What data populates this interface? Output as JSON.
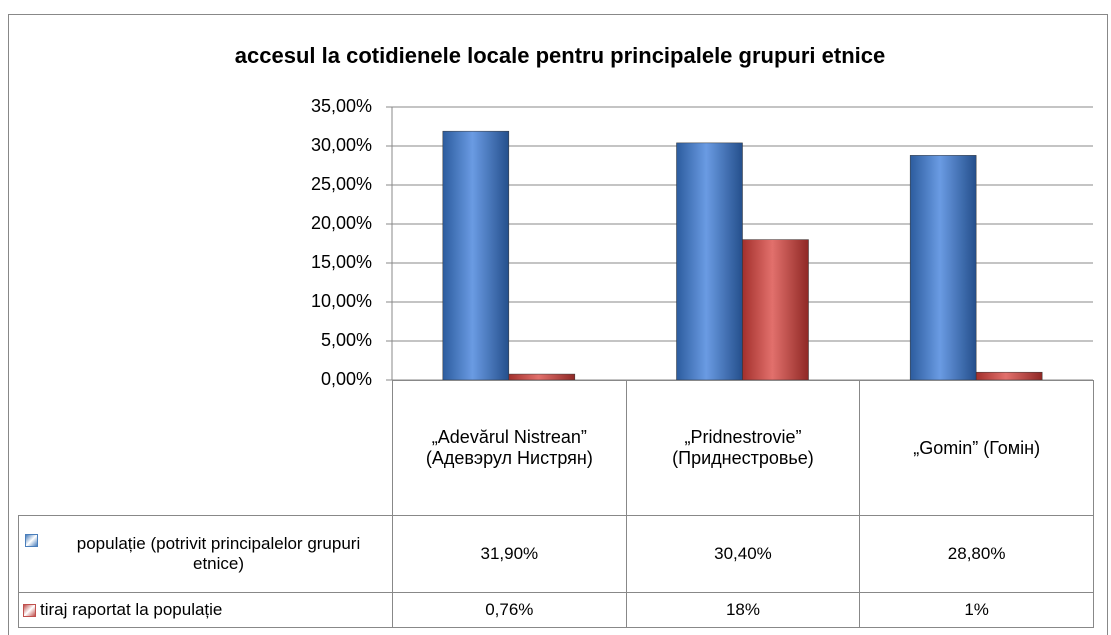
{
  "chart_data": {
    "type": "bar",
    "title": "accesul la cotidienele locale pentru principalele grupuri etnice",
    "categories": [
      "„Adevărul Nistrean” (Адевэрул Нистрян)",
      "„Pridnestrovie” (Приднестровье)",
      "„Gomin” (Гомін)"
    ],
    "series": [
      {
        "name": "populație (potrivit principalelor grupuri etnice)",
        "color": "#4a7ebb",
        "values": [
          31.9,
          30.4,
          28.8
        ],
        "value_labels": [
          "31,90%",
          "30,40%",
          "28,80%"
        ]
      },
      {
        "name": "tiraj raportat la populație",
        "color": "#c0504d",
        "values": [
          0.76,
          18,
          1
        ],
        "value_labels": [
          "0,76%",
          "18%",
          "1%"
        ]
      }
    ],
    "ylim": [
      0,
      35
    ],
    "yticks": [
      {
        "value": 0,
        "label": "0,00%"
      },
      {
        "value": 5,
        "label": "5,00%"
      },
      {
        "value": 10,
        "label": "10,00%"
      },
      {
        "value": 15,
        "label": "15,00%"
      },
      {
        "value": 20,
        "label": "20,00%"
      },
      {
        "value": 25,
        "label": "25,00%"
      },
      {
        "value": 30,
        "label": "30,00%"
      },
      {
        "value": 35,
        "label": "35,00%"
      }
    ],
    "grid": true
  }
}
